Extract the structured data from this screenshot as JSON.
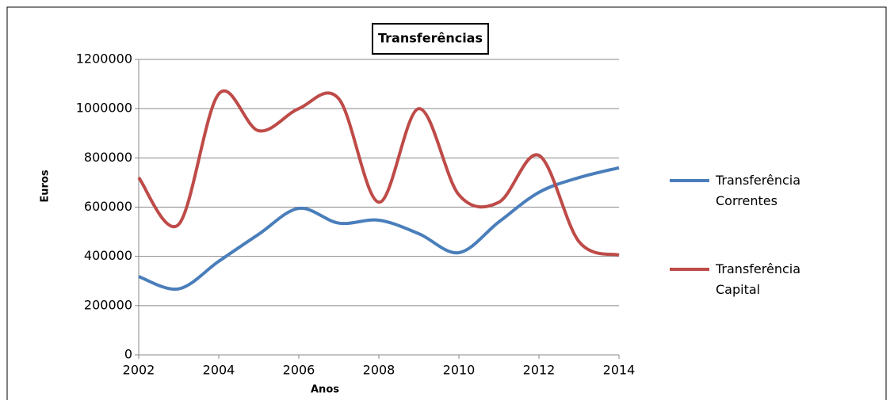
{
  "chart_data": {
    "type": "line",
    "title": "Transferências",
    "x_label": "Anos",
    "y_label": "Euros",
    "x": [
      2002,
      2003,
      2004,
      2005,
      2006,
      2007,
      2008,
      2009,
      2010,
      2011,
      2012,
      2013,
      2014
    ],
    "series": [
      {
        "name": "Transferência Correntes",
        "color": "#4a7ebb",
        "values": [
          318000,
          268000,
          380000,
          490000,
          595000,
          535000,
          547000,
          492000,
          415000,
          540000,
          660000,
          720000,
          760000
        ]
      },
      {
        "name": "Transferência Capital",
        "color": "#be4b48",
        "values": [
          720000,
          530000,
          1060000,
          910000,
          1000000,
          1040000,
          620000,
          1000000,
          650000,
          620000,
          810000,
          460000,
          405000
        ]
      }
    ],
    "xlim": [
      2002,
      2014
    ],
    "xticks": [
      2002,
      2004,
      2006,
      2008,
      2010,
      2012,
      2014
    ],
    "ylim": [
      0,
      1200000
    ],
    "yticks": [
      0,
      200000,
      400000,
      600000,
      800000,
      1000000,
      1200000
    ],
    "grid": true,
    "legend": "right"
  }
}
